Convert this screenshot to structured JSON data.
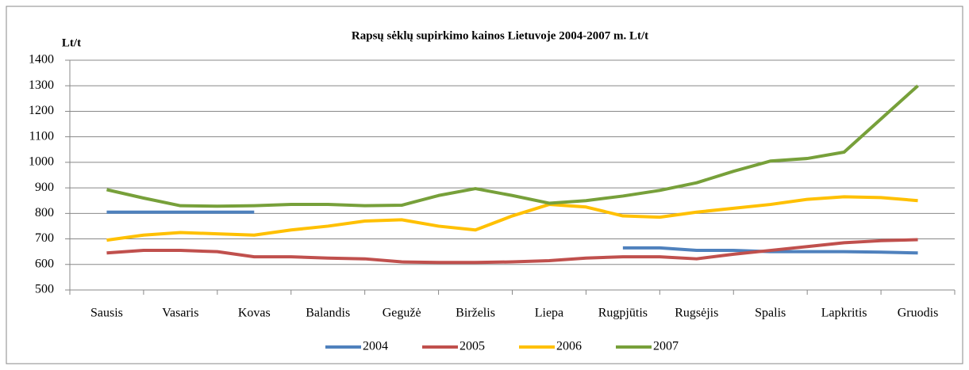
{
  "chart_data": {
    "type": "line",
    "title": "Rapsų sėklų supirkimo kainos Lietuvoje 2004-2007 m. Lt/t",
    "y_label": "Lt/t",
    "categories": [
      "Sausis",
      null,
      "Vasaris",
      null,
      "Kovas",
      null,
      "Balandis",
      null,
      "Gegužė",
      null,
      "Birželis",
      null,
      "Liepa",
      null,
      "Rugpjūtis",
      null,
      "Rugsėjis",
      null,
      "Spalis",
      null,
      "Lapkritis",
      null,
      "Gruodis"
    ],
    "series": [
      {
        "name": "2004",
        "color": "#4f81bd",
        "values": [
          805,
          805,
          805,
          805,
          805,
          null,
          null,
          null,
          null,
          null,
          null,
          null,
          null,
          null,
          665,
          665,
          655,
          655,
          650,
          650,
          650,
          648,
          645
        ]
      },
      {
        "name": "2005",
        "color": "#c0504d",
        "values": [
          645,
          655,
          655,
          650,
          630,
          630,
          625,
          622,
          610,
          608,
          608,
          610,
          615,
          625,
          630,
          630,
          622,
          640,
          655,
          670,
          685,
          693,
          697
        ]
      },
      {
        "name": "2006",
        "color": "#ffc000",
        "values": [
          695,
          715,
          725,
          720,
          715,
          735,
          750,
          770,
          775,
          750,
          735,
          790,
          835,
          825,
          790,
          785,
          805,
          820,
          835,
          855,
          865,
          862,
          850
        ]
      },
      {
        "name": "2007",
        "color": "#77a03a",
        "values": [
          893,
          860,
          830,
          828,
          830,
          835,
          835,
          830,
          832,
          870,
          897,
          870,
          840,
          850,
          868,
          890,
          920,
          965,
          1005,
          1015,
          1040,
          1170,
          1300
        ]
      }
    ],
    "ylim": [
      500,
      1400
    ],
    "yticks": [
      500,
      600,
      700,
      800,
      900,
      1000,
      1100,
      1200,
      1300,
      1400
    ],
    "legend": "bottom"
  }
}
